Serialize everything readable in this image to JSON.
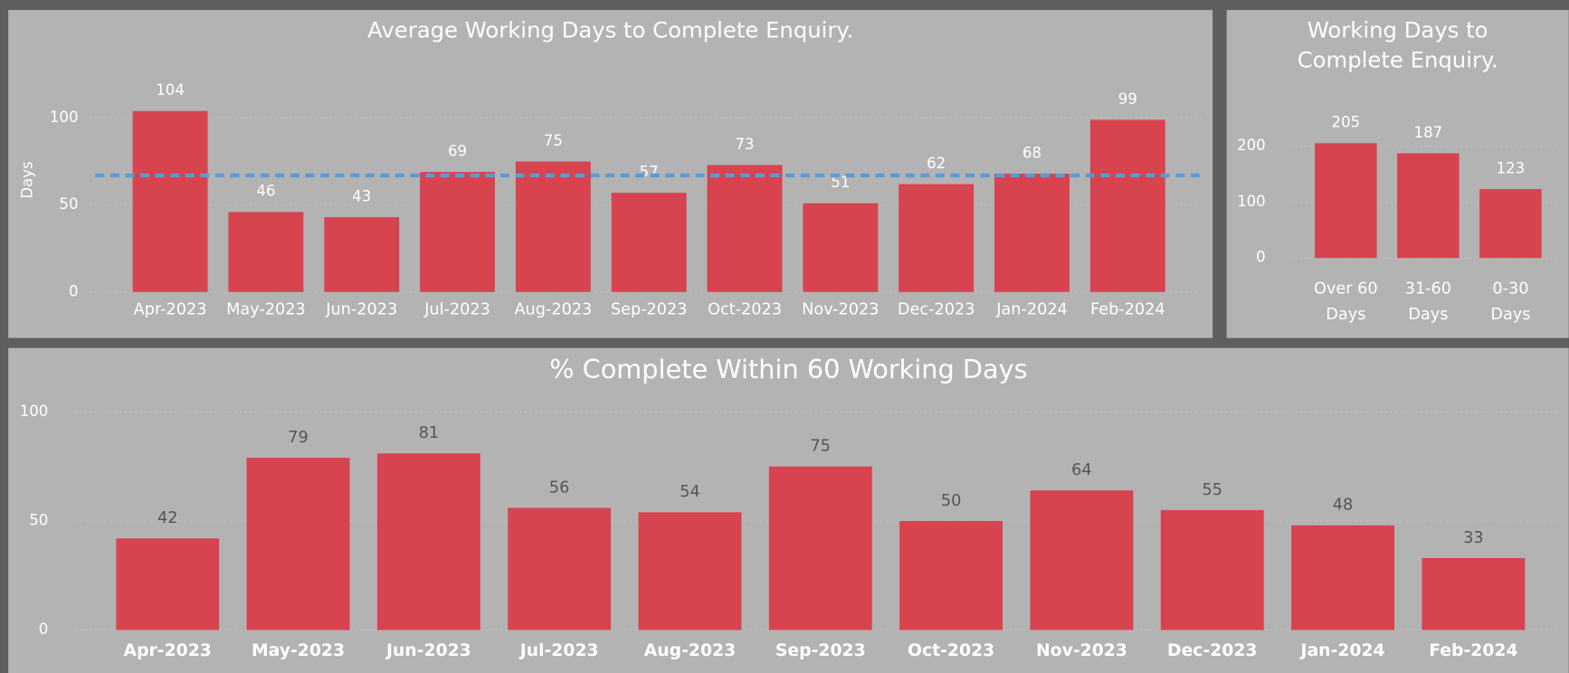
{
  "chart_data": [
    {
      "type": "bar",
      "title": "Average Working Days to Complete Enquiry.",
      "y_label": "Days",
      "categories": [
        "Apr-2023",
        "May-2023",
        "Jun-2023",
        "Jul-2023",
        "Aug-2023",
        "Sep-2023",
        "Oct-2023",
        "Nov-2023",
        "Dec-2023",
        "Jan-2024",
        "Feb-2024"
      ],
      "values": [
        104,
        46,
        43,
        69,
        75,
        57,
        73,
        51,
        62,
        68,
        99
      ],
      "color": "#d7434f",
      "average_line": 67,
      "average_color": "#5b9bd5",
      "ylim": [
        0,
        115
      ],
      "yticks": [
        0,
        50,
        100
      ],
      "grid": true
    },
    {
      "type": "bar",
      "title": "Working Days to Complete Enquiry.",
      "categories": [
        "Over 60 Days",
        "31-60 Days",
        "0-30 Days"
      ],
      "values": [
        205,
        187,
        123
      ],
      "color": "#d7434f",
      "ylim": [
        0,
        240
      ],
      "yticks": [
        0,
        100,
        200
      ],
      "grid": true
    },
    {
      "type": "bar",
      "title": "% Complete Within 60 Working Days",
      "categories": [
        "Apr-2023",
        "May-2023",
        "Jun-2023",
        "Jul-2023",
        "Aug-2023",
        "Sep-2023",
        "Oct-2023",
        "Nov-2023",
        "Dec-2023",
        "Jan-2024",
        "Feb-2024"
      ],
      "values": [
        42,
        79,
        81,
        56,
        54,
        75,
        50,
        64,
        55,
        48,
        33
      ],
      "color": "#d7434f",
      "ylim": [
        0,
        105
      ],
      "yticks": [
        0,
        50,
        100
      ],
      "grid": true
    }
  ]
}
